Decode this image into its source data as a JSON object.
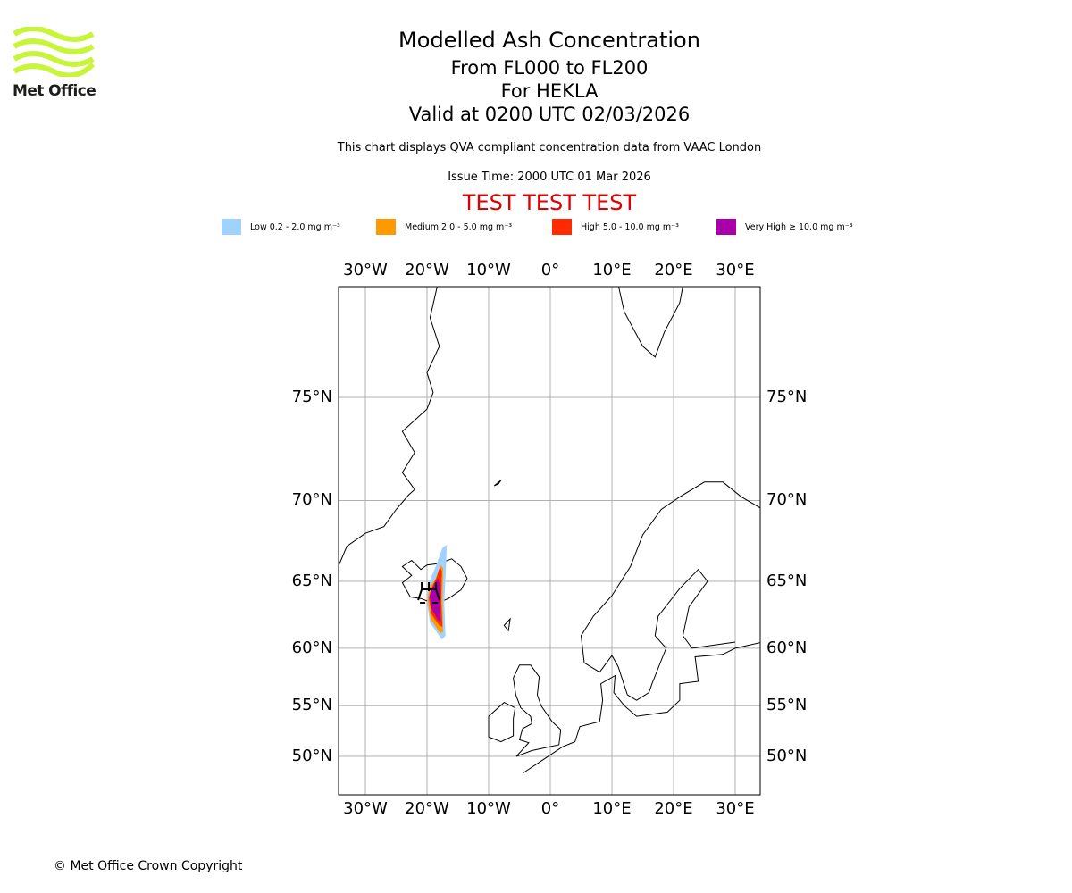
{
  "logo": {
    "text": "Met Office",
    "color": "#c8f53a"
  },
  "title": "Modelled Ash Concentration",
  "subtitle1": "From FL000 to FL200",
  "subtitle2": "For HEKLA",
  "subtitle3": "Valid at 0200 UTC 02/03/2026",
  "note": "This chart displays QVA compliant concentration data from VAAC London",
  "issue_time": "Issue Time: 2000 UTC 01 Mar 2026",
  "test_banner": "TEST TEST TEST",
  "legend": [
    {
      "label": "Low 0.2 - 2.0 mg m⁻³",
      "color": "#a0d2ff"
    },
    {
      "label": "Medium 2.0 - 5.0 mg m⁻³",
      "color": "#ff9900"
    },
    {
      "label": "High 5.0 - 10.0 mg m⁻³",
      "color": "#ff2a00"
    },
    {
      "label": "Very High ≥ 10.0 mg m⁻³",
      "color": "#aa00aa"
    }
  ],
  "copyright": "© Met Office Crown Copyright",
  "chart_data": {
    "type": "map",
    "projection": "mercator",
    "lon_range": [
      -34.4,
      34
    ],
    "lat_range": [
      47.3,
      81.4
    ],
    "lon_ticks": [
      {
        "v": -30,
        "label": "30°W"
      },
      {
        "v": -20,
        "label": "20°W"
      },
      {
        "v": -10,
        "label": "10°W"
      },
      {
        "v": 0,
        "label": "0°"
      },
      {
        "v": 10,
        "label": "10°E"
      },
      {
        "v": 20,
        "label": "20°E"
      },
      {
        "v": 30,
        "label": "30°E"
      }
    ],
    "lat_ticks": [
      {
        "v": 75,
        "label": "75°N"
      },
      {
        "v": 70,
        "label": "70°N"
      },
      {
        "v": 65,
        "label": "65°N"
      },
      {
        "v": 60,
        "label": "60°N"
      },
      {
        "v": 55,
        "label": "55°N"
      },
      {
        "v": 50,
        "label": "50°N"
      }
    ],
    "volcano": {
      "name": "HEKLA",
      "lon": -19.7,
      "lat": 64.0
    },
    "ash_areas": [
      {
        "level": "Low",
        "polygon": [
          [
            -18.6,
            66.0
          ],
          [
            -17.5,
            67.2
          ],
          [
            -16.8,
            67.4
          ],
          [
            -16.9,
            66.2
          ],
          [
            -17.2,
            63.5
          ],
          [
            -17.0,
            61.0
          ],
          [
            -17.6,
            60.7
          ],
          [
            -18.3,
            61.2
          ],
          [
            -19.5,
            62.0
          ],
          [
            -20.0,
            63.5
          ],
          [
            -19.8,
            64.8
          ]
        ]
      },
      {
        "level": "Medium",
        "polygon": [
          [
            -18.6,
            65.2
          ],
          [
            -17.8,
            66.1
          ],
          [
            -17.4,
            65.9
          ],
          [
            -17.5,
            63.8
          ],
          [
            -17.4,
            61.3
          ],
          [
            -17.9,
            61.2
          ],
          [
            -19.4,
            62.3
          ],
          [
            -19.9,
            63.7
          ],
          [
            -19.6,
            64.6
          ]
        ]
      },
      {
        "level": "High",
        "polygon": [
          [
            -18.4,
            65.3
          ],
          [
            -17.9,
            66.0
          ],
          [
            -17.6,
            65.7
          ],
          [
            -17.7,
            63.5
          ],
          [
            -17.5,
            61.7
          ],
          [
            -18.0,
            61.8
          ],
          [
            -19.2,
            62.6
          ],
          [
            -19.7,
            63.8
          ],
          [
            -19.3,
            64.5
          ]
        ]
      },
      {
        "level": "Very High",
        "polygon": [
          [
            -18.7,
            64.9
          ],
          [
            -18.2,
            65.2
          ],
          [
            -17.9,
            64.8
          ],
          [
            -17.9,
            63.3
          ],
          [
            -17.8,
            62.0
          ],
          [
            -18.3,
            62.3
          ],
          [
            -19.2,
            63.0
          ],
          [
            -19.6,
            64.0
          ],
          [
            -19.2,
            64.5
          ]
        ]
      }
    ]
  }
}
